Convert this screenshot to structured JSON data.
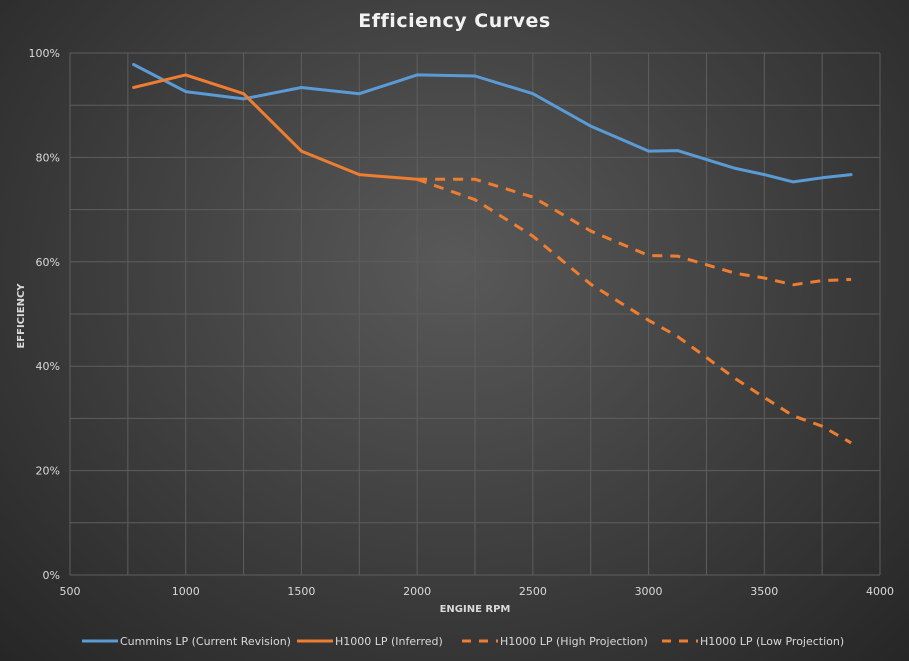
{
  "chart_data": {
    "type": "line",
    "title": "Efficiency Curves",
    "xlabel": "ENGINE RPM",
    "ylabel": "EFFICIENCY",
    "xlim": [
      500,
      4000
    ],
    "ylim": [
      0,
      100
    ],
    "x_ticks": [
      "500",
      "1000",
      "1500",
      "2000",
      "2500",
      "3000",
      "3500",
      "4000"
    ],
    "y_ticks": [
      "0%",
      "20%",
      "40%",
      "60%",
      "80%",
      "100%"
    ],
    "grid": true,
    "legend_position": "bottom",
    "series": [
      {
        "name": "Cummins LP (Current Revision)",
        "color": "#5b9bd5",
        "dashed": false,
        "x": [
          775,
          1000,
          1250,
          1500,
          1750,
          2000,
          2250,
          2500,
          2750,
          3000,
          3125,
          3375,
          3500,
          3625,
          3750,
          3875
        ],
        "y": [
          97.8,
          92.6,
          91.2,
          93.4,
          92.2,
          95.8,
          95.6,
          92.2,
          86,
          81.2,
          81.3,
          77.9,
          76.7,
          75.3,
          76.1,
          76.7
        ]
      },
      {
        "name": "H1000 LP (Inferred)",
        "color": "#ed7d31",
        "dashed": false,
        "x": [
          775,
          1000,
          1250,
          1500,
          1750,
          2000
        ],
        "y": [
          93.4,
          95.8,
          92.2,
          81.2,
          76.7,
          75.8
        ]
      },
      {
        "name": "H1000 LP (High Projection)",
        "color": "#ed7d31",
        "dashed": true,
        "x": [
          2000,
          2250,
          2500,
          2750,
          3000,
          3125,
          3375,
          3500,
          3625,
          3750,
          3875
        ],
        "y": [
          75.8,
          75.8,
          72.4,
          65.9,
          61.2,
          61.1,
          57.8,
          56.9,
          55.6,
          56.4,
          56.6
        ]
      },
      {
        "name": "H1000 LP (Low Projection)",
        "color": "#ed7d31",
        "dashed": true,
        "x": [
          2000,
          2250,
          2500,
          2750,
          3000,
          3125,
          3375,
          3500,
          3625,
          3750,
          3875
        ],
        "y": [
          75.8,
          71.9,
          64.9,
          55.7,
          48.8,
          45.7,
          37.6,
          34.0,
          30.5,
          28.5,
          25.3
        ]
      }
    ]
  }
}
